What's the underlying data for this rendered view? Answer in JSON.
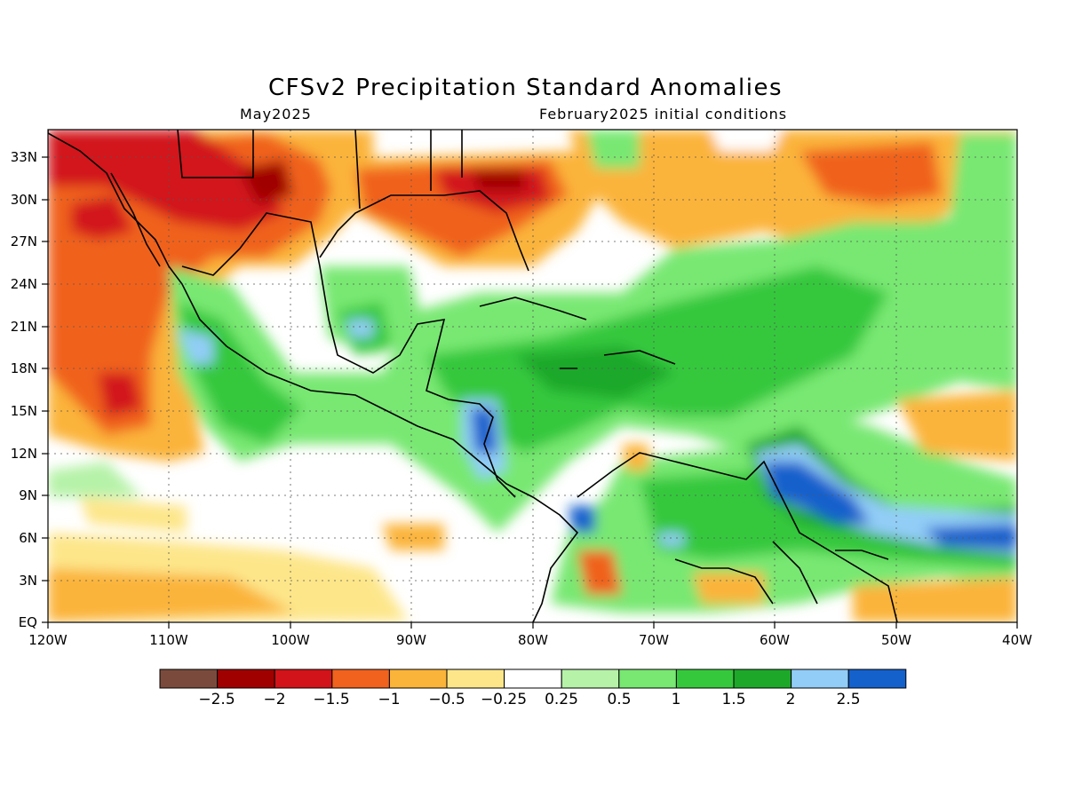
{
  "title": "CFSv2 Precipitation Standard Anomalies",
  "valid_month": "May2025",
  "initial_conditions": "February2025 initial conditions",
  "map": {
    "lon_labels": [
      "120W",
      "110W",
      "100W",
      "90W",
      "80W",
      "70W",
      "60W",
      "50W",
      "40W"
    ],
    "lat_labels": [
      "EQ",
      "3N",
      "6N",
      "9N",
      "12N",
      "15N",
      "18N",
      "21N",
      "24N",
      "27N",
      "30N",
      "33N"
    ],
    "lon_range": [
      -120,
      -40
    ],
    "lat_range": [
      0,
      35
    ],
    "grid": "dotted"
  },
  "colorbar": {
    "colors": [
      "#7a4b3d",
      "#a00000",
      "#d2141a",
      "#f0621e",
      "#fbb43a",
      "#fde68a",
      "#ffffff",
      "#b6f2a8",
      "#78e872",
      "#36c83c",
      "#1ea82a",
      "#92cdf7",
      "#1461cc"
    ],
    "labels": [
      "−2.5",
      "−2",
      "−1.5",
      "−1",
      "−0.5",
      "−0.25",
      "0.25",
      "0.5",
      "1",
      "1.5",
      "2",
      "2.5"
    ]
  }
}
